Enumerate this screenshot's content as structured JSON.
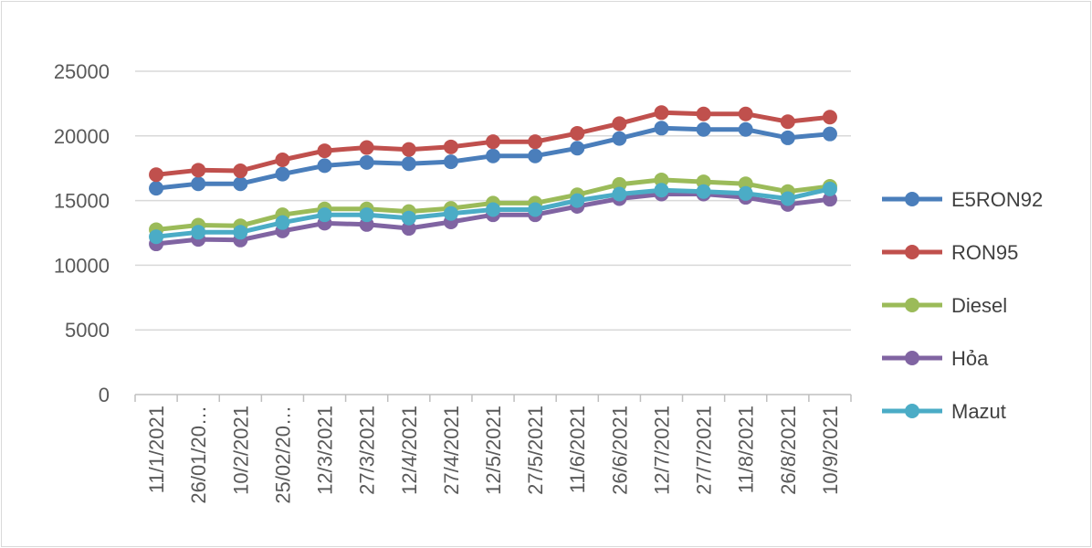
{
  "chart_data": {
    "type": "line",
    "title": "",
    "xlabel": "",
    "ylabel": "",
    "ylim": [
      0,
      25000
    ],
    "yticks": [
      "0",
      "5000",
      "10000",
      "15000",
      "20000",
      "25000"
    ],
    "categories": [
      "11/1/2021",
      "26/01/20…",
      "10/2/2021",
      "25/02/20…",
      "12/3/2021",
      "27/3/2021",
      "12/4/2021",
      "27/4/2021",
      "12/5/2021",
      "27/5/2021",
      "11/6/2021",
      "26/6/2021",
      "12/7/2021",
      "27/7/2021",
      "11/8/2021",
      "26/8/2021",
      "10/9/2021"
    ],
    "grid": true,
    "legend_position": "right",
    "series": [
      {
        "name": "E5RON92",
        "color": "#4a7ebb",
        "values": [
          15950,
          16300,
          16300,
          17050,
          17700,
          17950,
          17850,
          18000,
          18450,
          18450,
          19050,
          19800,
          20600,
          20500,
          20500,
          19850,
          20150
        ]
      },
      {
        "name": "RON95",
        "color": "#c0504d",
        "values": [
          17000,
          17350,
          17300,
          18150,
          18850,
          19100,
          18950,
          19150,
          19550,
          19550,
          20200,
          20950,
          21800,
          21700,
          21700,
          21100,
          21450
        ]
      },
      {
        "name": "Diesel",
        "color": "#9bbb59",
        "values": [
          12750,
          13100,
          13050,
          13900,
          14350,
          14350,
          14150,
          14400,
          14800,
          14800,
          15450,
          16250,
          16600,
          16450,
          16300,
          15700,
          16100
        ]
      },
      {
        "name": "Hỏa",
        "color": "#8064a2",
        "values": [
          11650,
          12000,
          11950,
          12650,
          13250,
          13150,
          12850,
          13350,
          13900,
          13900,
          14550,
          15150,
          15500,
          15500,
          15250,
          14700,
          15100
        ]
      },
      {
        "name": "Mazut",
        "color": "#4bacc6",
        "values": [
          12200,
          12550,
          12550,
          13300,
          13900,
          13900,
          13650,
          14000,
          14300,
          14300,
          15000,
          15500,
          15800,
          15700,
          15550,
          15150,
          15900
        ]
      }
    ]
  }
}
